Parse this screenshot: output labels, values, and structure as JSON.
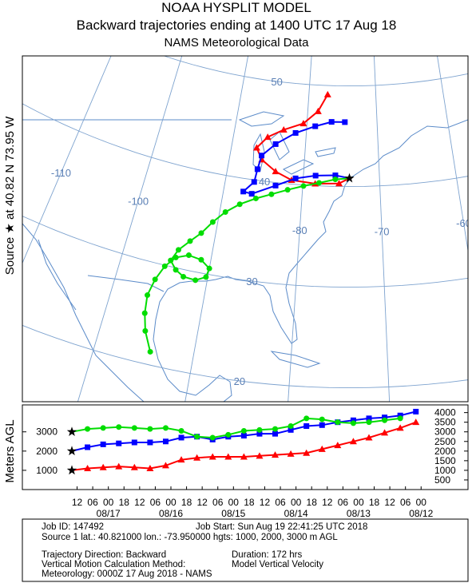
{
  "header": {
    "lines": [
      "NOAA HYSPLIT MODEL",
      "Backward trajectories ending at 1400 UTC 17 Aug 18",
      "NAMS Meteorological Data"
    ]
  },
  "side_label": "Source ★ at  40.82 N   73.95 W",
  "map": {
    "lat_ticks": [
      20,
      30,
      40,
      50
    ],
    "lon_ticks": [
      -110,
      -100,
      {
        "value": -90,
        "label": null
      },
      -80,
      -70,
      -60
    ],
    "trajectories": [
      {
        "color": "#ff0000",
        "marker": "triangle",
        "lat": [
          40.82,
          40.3,
          40.2,
          40.4,
          41.1,
          42.1,
          43.2,
          44.4,
          45.3,
          46.1,
          47.4,
          49.1
        ],
        "lon": [
          -73.95,
          -75.3,
          -78.4,
          -81.5,
          -83.7,
          -85.7,
          -86.6,
          -85.3,
          -83.2,
          -80.5,
          -78.5,
          -77.2
        ]
      },
      {
        "color": "#0000ff",
        "marker": "square",
        "lat": [
          40.82,
          41.1,
          41.0,
          40.6,
          39.7,
          38.6,
          38.7,
          39.8,
          41.1,
          42.5,
          43.8,
          45.1,
          45.9,
          46.4,
          46.4
        ],
        "lon": [
          -73.95,
          -75.8,
          -78.4,
          -81.0,
          -83.5,
          -86.4,
          -87.5,
          -86.3,
          -86.1,
          -85.8,
          -84.1,
          -81.5,
          -78.8,
          -76.5,
          -74.6
        ]
      },
      {
        "color": "#00dd00",
        "marker": "circle",
        "lat": [
          40.82,
          40.7,
          40.3,
          39.9,
          39.4,
          38.8,
          38.2,
          37.4,
          36.4,
          35.2,
          33.9,
          32.9,
          31.8,
          30.6,
          29.8,
          29.3,
          29.2,
          29.7,
          30.6,
          31.3,
          31.5,
          31.0,
          29.9,
          28.4,
          26.7,
          24.9,
          23.2,
          21.3
        ],
        "lon": [
          -73.95,
          -75.8,
          -77.9,
          -79.9,
          -81.9,
          -83.9,
          -85.8,
          -87.7,
          -89.3,
          -90.6,
          -91.7,
          -92.8,
          -93.9,
          -94.5,
          -93.7,
          -92.7,
          -91.3,
          -90.2,
          -90.0,
          -91.1,
          -92.6,
          -94.0,
          -95.0,
          -95.7,
          -96.1,
          -95.9,
          -95.4,
          -94.4
        ]
      }
    ]
  },
  "height_chart": {
    "y_label": "Meters AGL",
    "xlim": [
      -19,
      152
    ],
    "xticks": [
      {
        "value": 2,
        "label": "12"
      },
      {
        "value": 8,
        "label": "06"
      },
      {
        "value": 14,
        "label": "00"
      },
      {
        "value": 20,
        "label": "18"
      },
      {
        "value": 26,
        "label": "12"
      },
      {
        "value": 32,
        "label": "06"
      },
      {
        "value": 38,
        "label": "00"
      },
      {
        "value": 44,
        "label": "18"
      },
      {
        "value": 50,
        "label": "12"
      },
      {
        "value": 56,
        "label": "06"
      },
      {
        "value": 62,
        "label": "00"
      },
      {
        "value": 68,
        "label": "18"
      },
      {
        "value": 74,
        "label": "12"
      },
      {
        "value": 80,
        "label": "06"
      },
      {
        "value": 86,
        "label": "00"
      },
      {
        "value": 92,
        "label": "18"
      },
      {
        "value": 98,
        "label": "12"
      },
      {
        "value": 104,
        "label": "06"
      },
      {
        "value": 110,
        "label": "00"
      },
      {
        "value": 116,
        "label": "18"
      },
      {
        "value": 122,
        "label": "12"
      },
      {
        "value": 128,
        "label": "06"
      },
      {
        "value": 134,
        "label": "00"
      }
    ],
    "date_labels": [
      {
        "value": 14,
        "label": "08/17"
      },
      {
        "value": 38,
        "label": "08/16"
      },
      {
        "value": 62,
        "label": "08/15"
      },
      {
        "value": 86,
        "label": "08/14"
      },
      {
        "value": 110,
        "label": "08/13"
      },
      {
        "value": 134,
        "label": "08/12"
      }
    ],
    "ylim": [
      0,
      4400
    ],
    "yticks": [
      1000,
      2000,
      3000
    ],
    "y2ticks": [
      500,
      1000,
      1500,
      2000,
      2500,
      3000,
      3500,
      4000
    ],
    "hours": [
      0,
      6,
      12,
      18,
      24,
      30,
      36,
      42,
      48,
      54,
      60,
      66,
      72,
      78,
      84,
      90,
      96,
      102,
      108,
      114,
      120,
      126,
      132
    ],
    "series": [
      {
        "color": "#ff0000",
        "marker": "triangle",
        "values": [
          1000,
          1100,
          1150,
          1200,
          1150,
          1100,
          1250,
          1550,
          1650,
          1700,
          1700,
          1700,
          1750,
          1800,
          1850,
          1900,
          2100,
          2300,
          2500,
          2700,
          2950,
          3200,
          3500
        ]
      },
      {
        "color": "#0000ff",
        "marker": "square",
        "values": [
          2000,
          2200,
          2350,
          2400,
          2450,
          2450,
          2500,
          2700,
          2750,
          2600,
          2750,
          2800,
          2900,
          2900,
          3100,
          3300,
          3350,
          3500,
          3600,
          3700,
          3750,
          3850,
          4050
        ]
      },
      {
        "color": "#00dd00",
        "marker": "circle",
        "values": [
          3000,
          3150,
          3200,
          3250,
          3200,
          3150,
          3200,
          3050,
          2750,
          2700,
          2850,
          3050,
          3100,
          3150,
          3300,
          3700,
          3650,
          3500,
          3450,
          3500,
          3600,
          3700,
          null
        ]
      }
    ]
  },
  "info": {
    "job_id": "Job ID: 147492",
    "job_start": "Job Start: Sun Aug 19 22:41:25 UTC 2018",
    "source": "Source 1 lat.: 40.821000  lon.: -73.950000  hgts: 1000, 2000, 3000 m AGL",
    "direction": "Trajectory Direction: Backward",
    "duration": "Duration: 172 hrs",
    "vertical_label": "Vertical Motion Calculation Method:",
    "vertical_value": "Model Vertical Velocity",
    "meteorology": "Meteorology: 0000Z 17 Aug 2018 - NAMS"
  }
}
